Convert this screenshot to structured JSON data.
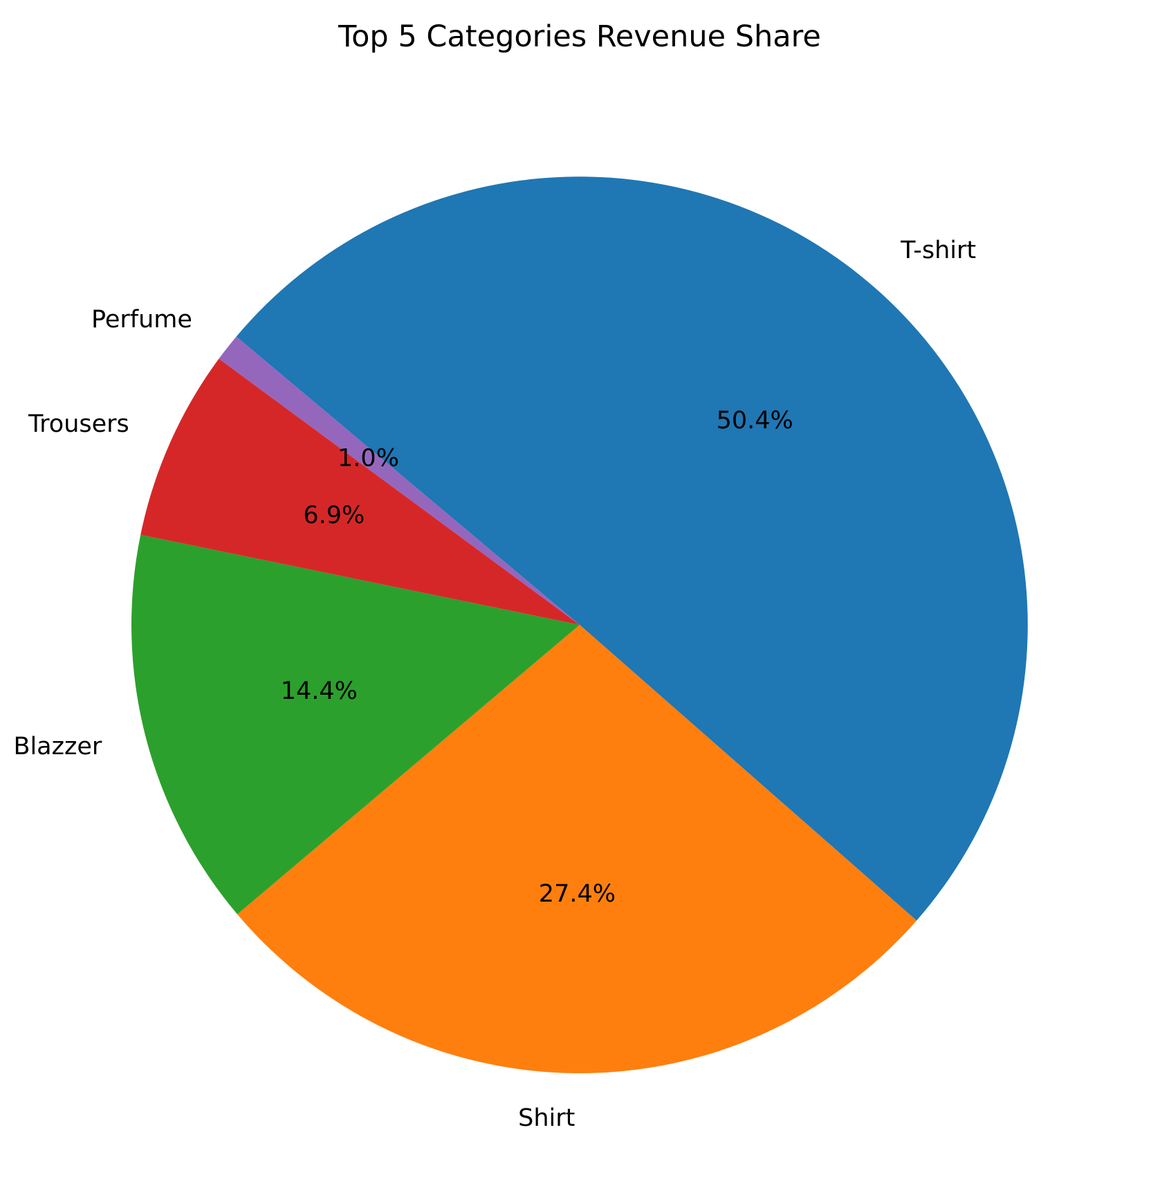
{
  "chart_data": {
    "type": "pie",
    "title": "Top 5 Categories Revenue Share",
    "start_angle_deg": 140,
    "direction": "clockwise",
    "slices": [
      {
        "label": "T-shirt",
        "pct_label": "50.4%",
        "value": 50.4,
        "color": "#1f77b4"
      },
      {
        "label": "Shirt",
        "pct_label": "27.4%",
        "value": 27.4,
        "color": "#ff7f0e"
      },
      {
        "label": "Blazzer",
        "pct_label": "14.4%",
        "value": 14.4,
        "color": "#2ca02c"
      },
      {
        "label": "Trousers",
        "pct_label": "6.9%",
        "value": 6.9,
        "color": "#d62728"
      },
      {
        "label": "Perfume",
        "pct_label": "1.0%",
        "value": 1.0,
        "color": "#9467bd"
      }
    ]
  }
}
